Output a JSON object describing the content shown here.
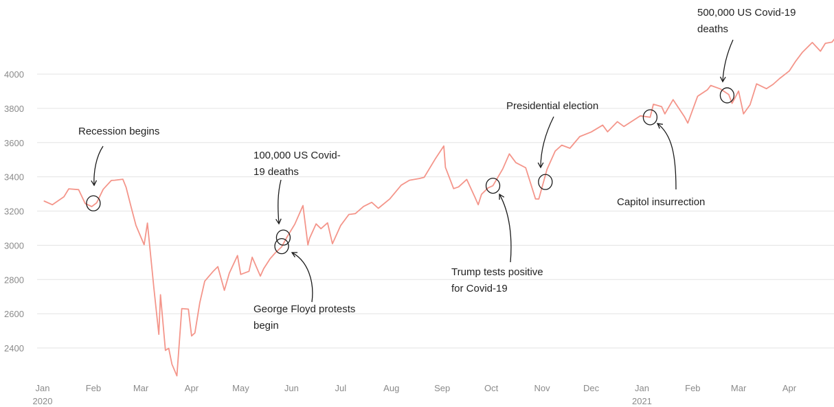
{
  "chart_data": {
    "type": "line",
    "title": "",
    "xlabel": "",
    "ylabel": "",
    "ylim": [
      2240,
      4200
    ],
    "grid": true,
    "colors": {
      "line": "#f4958a",
      "grid": "#e3e3e3",
      "text": "#8a8a8a",
      "annotation": "#1a1a1a"
    },
    "y_ticks": [
      {
        "value": 2400,
        "label": "2400"
      },
      {
        "value": 2600,
        "label": "2600"
      },
      {
        "value": 2800,
        "label": "2800"
      },
      {
        "value": 3000,
        "label": "3000"
      },
      {
        "value": 3200,
        "label": "3200"
      },
      {
        "value": 3400,
        "label": "3400"
      },
      {
        "value": 3600,
        "label": "3600"
      },
      {
        "value": 3800,
        "label": "3800"
      },
      {
        "value": 4000,
        "label": "4000"
      }
    ],
    "x_ticks": [
      {
        "date": "2020-01-01",
        "label": "Jan",
        "sublabel": "2020"
      },
      {
        "date": "2020-02-01",
        "label": "Feb"
      },
      {
        "date": "2020-03-01",
        "label": "Mar"
      },
      {
        "date": "2020-04-01",
        "label": "Apr"
      },
      {
        "date": "2020-05-01",
        "label": "May"
      },
      {
        "date": "2020-06-01",
        "label": "Jun"
      },
      {
        "date": "2020-07-01",
        "label": "Jul"
      },
      {
        "date": "2020-08-01",
        "label": "Aug"
      },
      {
        "date": "2020-09-01",
        "label": "Sep"
      },
      {
        "date": "2020-10-01",
        "label": "Oct"
      },
      {
        "date": "2020-11-01",
        "label": "Nov"
      },
      {
        "date": "2020-12-01",
        "label": "Dec"
      },
      {
        "date": "2021-01-01",
        "label": "Jan",
        "sublabel": "2021"
      },
      {
        "date": "2021-02-01",
        "label": "Feb"
      },
      {
        "date": "2021-03-01",
        "label": "Mar"
      },
      {
        "date": "2021-04-01",
        "label": "Apr"
      }
    ],
    "series": [
      {
        "x": [
          "2020-01-02",
          "2020-01-07",
          "2020-01-14",
          "2020-01-17",
          "2020-01-23",
          "2020-01-27",
          "2020-01-31",
          "2020-02-03",
          "2020-02-07",
          "2020-02-12",
          "2020-02-14",
          "2020-02-19",
          "2020-02-21",
          "2020-02-24",
          "2020-02-27",
          "2020-03-03",
          "2020-03-05",
          "2020-03-09",
          "2020-03-12",
          "2020-03-13",
          "2020-03-16",
          "2020-03-18",
          "2020-03-20",
          "2020-03-23",
          "2020-03-26",
          "2020-03-30",
          "2020-04-01",
          "2020-04-03",
          "2020-04-06",
          "2020-04-09",
          "2020-04-14",
          "2020-04-17",
          "2020-04-21",
          "2020-04-24",
          "2020-04-29",
          "2020-05-01",
          "2020-05-06",
          "2020-05-08",
          "2020-05-13",
          "2020-05-15",
          "2020-05-19",
          "2020-05-22",
          "2020-05-26",
          "2020-05-29",
          "2020-06-03",
          "2020-06-08",
          "2020-06-11",
          "2020-06-12",
          "2020-06-16",
          "2020-06-19",
          "2020-06-23",
          "2020-06-26",
          "2020-07-01",
          "2020-07-06",
          "2020-07-10",
          "2020-07-15",
          "2020-07-20",
          "2020-07-24",
          "2020-07-31",
          "2020-08-07",
          "2020-08-12",
          "2020-08-18",
          "2020-08-21",
          "2020-08-28",
          "2020-09-02",
          "2020-09-03",
          "2020-09-08",
          "2020-09-11",
          "2020-09-16",
          "2020-09-21",
          "2020-09-23",
          "2020-09-25",
          "2020-09-29",
          "2020-10-02",
          "2020-10-08",
          "2020-10-12",
          "2020-10-16",
          "2020-10-22",
          "2020-10-28",
          "2020-10-30",
          "2020-11-04",
          "2020-11-09",
          "2020-11-13",
          "2020-11-18",
          "2020-11-24",
          "2020-12-01",
          "2020-12-08",
          "2020-12-11",
          "2020-12-17",
          "2020-12-21",
          "2020-12-31",
          "2021-01-06",
          "2021-01-08",
          "2021-01-13",
          "2021-01-15",
          "2021-01-20",
          "2021-01-27",
          "2021-01-29",
          "2021-02-04",
          "2021-02-10",
          "2021-02-12",
          "2021-02-18",
          "2021-02-23",
          "2021-02-25",
          "2021-03-01",
          "2021-03-04",
          "2021-03-08",
          "2021-03-12",
          "2021-03-18",
          "2021-03-22",
          "2021-03-26",
          "2021-04-01",
          "2021-04-05",
          "2021-04-09",
          "2021-04-15",
          "2021-04-20",
          "2021-04-23",
          "2021-04-27",
          "2021-04-29"
        ],
        "values": [
          3258,
          3237,
          3283,
          3330,
          3325,
          3244,
          3226,
          3248,
          3327,
          3379,
          3380,
          3386,
          3338,
          3226,
          3116,
          3003,
          3130,
          2746,
          2480,
          2711,
          2386,
          2398,
          2305,
          2237,
          2630,
          2627,
          2470,
          2488,
          2664,
          2790,
          2846,
          2875,
          2737,
          2837,
          2940,
          2830,
          2848,
          2930,
          2820,
          2863,
          2922,
          2955,
          2991,
          3044,
          3123,
          3232,
          3002,
          3041,
          3125,
          3097,
          3131,
          3009,
          3115,
          3180,
          3185,
          3227,
          3251,
          3216,
          3271,
          3351,
          3380,
          3390,
          3397,
          3508,
          3580,
          3455,
          3331,
          3341,
          3385,
          3281,
          3237,
          3298,
          3335,
          3348,
          3446,
          3534,
          3483,
          3453,
          3271,
          3270,
          3443,
          3550,
          3585,
          3567,
          3635,
          3662,
          3702,
          3663,
          3722,
          3694,
          3756,
          3748,
          3824,
          3810,
          3768,
          3851,
          3750,
          3714,
          3871,
          3909,
          3934,
          3913,
          3881,
          3829,
          3901,
          3768,
          3821,
          3943,
          3915,
          3940,
          3974,
          4019,
          4077,
          4128,
          4185,
          4134,
          4180,
          4187,
          4211
        ]
      }
    ],
    "annotations": [
      {
        "text": [
          "Recession begins"
        ],
        "date": "2020-02-01",
        "value": 3245
      },
      {
        "text": [
          "100,000 US Covid-",
          "19 deaths"
        ],
        "date": "2020-05-27",
        "value": 3045
      },
      {
        "text": [
          "George Floyd protests",
          "begin"
        ],
        "date": "2020-05-26",
        "value": 2995
      },
      {
        "text": [
          "Trump tests positive",
          "for Covid-19"
        ],
        "date": "2020-10-02",
        "value": 3348
      },
      {
        "text": [
          "Presidential election"
        ],
        "date": "2020-11-03",
        "value": 3370
      },
      {
        "text": [
          "Capitol insurrection"
        ],
        "date": "2021-01-06",
        "value": 3748
      },
      {
        "text": [
          "500,000 US Covid-19",
          "deaths"
        ],
        "date": "2021-02-22",
        "value": 3876
      }
    ]
  }
}
